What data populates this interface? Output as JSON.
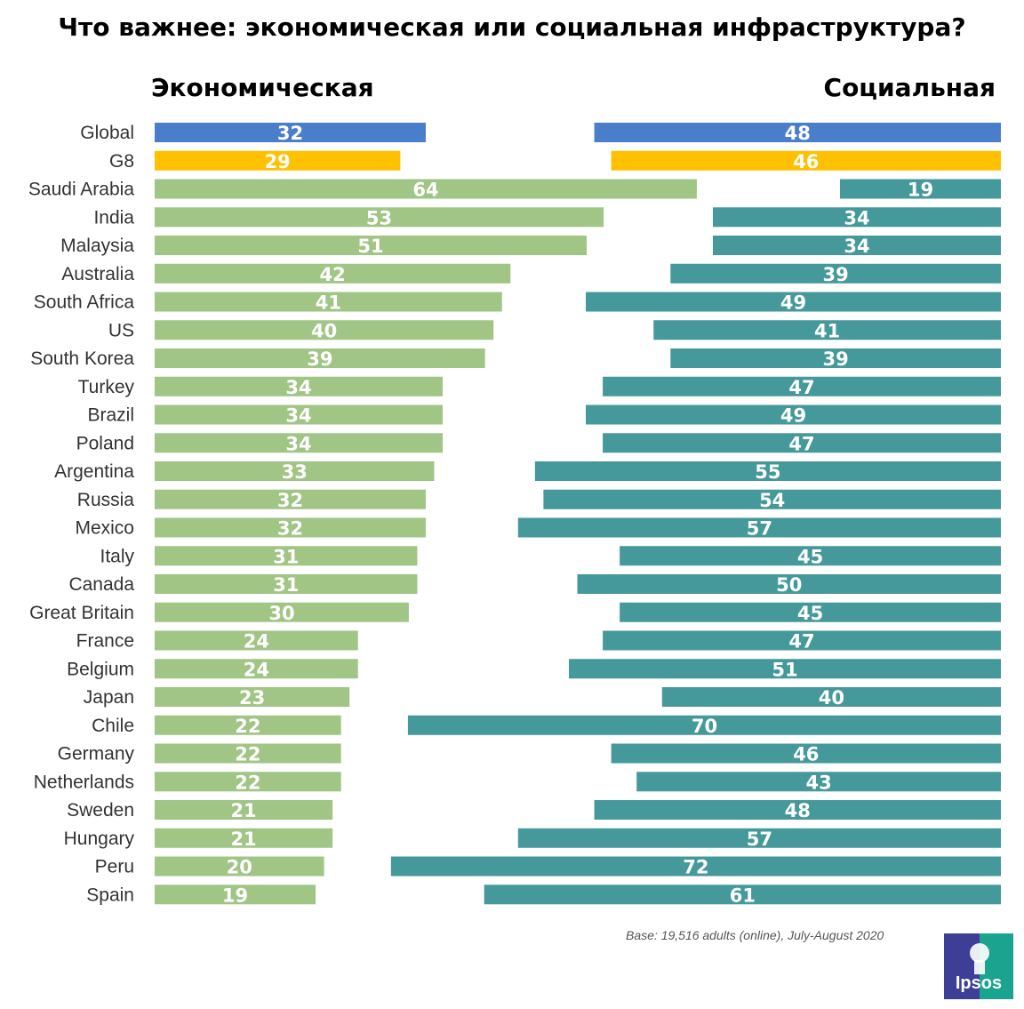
{
  "title": "Что важнее: экономическая или социальная инфраструктура?",
  "left_header": "Экономическая",
  "right_header": "Социальная",
  "base_note": "Base: 19,516 adults (online), July-August 2020",
  "logo_text": "Ipsos",
  "colors": {
    "global": "#4a7ecb",
    "g8": "#ffc000",
    "economic": "#a0c585",
    "social": "#45999a",
    "logo_left": "#3d3f97",
    "logo_right": "#1aa48f"
  },
  "chart_data": {
    "type": "bar",
    "orientation": "horizontal",
    "title": "Что важнее: экономическая или социальная инфраструктура?",
    "categories": [
      "Global",
      "G8",
      "Saudi Arabia",
      "India",
      "Malaysia",
      "Australia",
      "South Africa",
      "US",
      "South Korea",
      "Turkey",
      "Brazil",
      "Poland",
      "Argentina",
      "Russia",
      "Mexico",
      "Italy",
      "Canada",
      "Great Britain",
      "France",
      "Belgium",
      "Japan",
      "Chile",
      "Germany",
      "Netherlands",
      "Sweden",
      "Hungary",
      "Peru",
      "Spain"
    ],
    "series": [
      {
        "name": "Экономическая",
        "values": [
          32,
          29,
          64,
          53,
          51,
          42,
          41,
          40,
          39,
          34,
          34,
          34,
          33,
          32,
          32,
          31,
          31,
          30,
          24,
          24,
          23,
          22,
          22,
          22,
          21,
          21,
          20,
          19
        ]
      },
      {
        "name": "Социальная",
        "values": [
          48,
          46,
          19,
          34,
          34,
          39,
          49,
          41,
          39,
          47,
          49,
          47,
          55,
          54,
          57,
          45,
          50,
          45,
          47,
          51,
          40,
          70,
          46,
          43,
          48,
          57,
          72,
          61
        ]
      }
    ],
    "highlight_categories": [
      "Global",
      "G8"
    ],
    "xlim": [
      0,
      100
    ]
  }
}
